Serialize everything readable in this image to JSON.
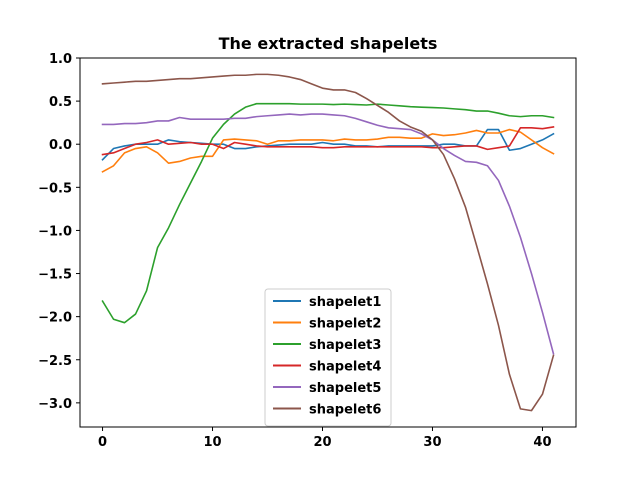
{
  "chart_data": {
    "type": "line",
    "title": "The extracted shapelets",
    "xlabel": "",
    "ylabel": "",
    "xlim": [
      -2.05,
      43.05
    ],
    "ylim": [
      -3.28,
      1.0
    ],
    "xticks": [
      0,
      10,
      20,
      30,
      40
    ],
    "xtick_labels": [
      "0",
      "10",
      "20",
      "30",
      "40"
    ],
    "yticks": [
      1.0,
      0.5,
      0.0,
      -0.5,
      -1.0,
      -1.5,
      -2.0,
      -2.5,
      -3.0
    ],
    "ytick_labels": [
      "1.0",
      "0.5",
      "0.0",
      "−0.5",
      "−1.0",
      "−1.5",
      "−2.0",
      "−2.5",
      "−3.0"
    ],
    "grid": false,
    "legend_position": "lower-center",
    "x": [
      0,
      1,
      2,
      3,
      4,
      5,
      6,
      7,
      8,
      9,
      10,
      11,
      12,
      13,
      14,
      15,
      16,
      17,
      18,
      19,
      20,
      21,
      22,
      23,
      24,
      25,
      26,
      27,
      28,
      29,
      30,
      31,
      32,
      33,
      34,
      35,
      36,
      37,
      38,
      39,
      40,
      41
    ],
    "series": [
      {
        "name": "shapelet1",
        "color": "#1f77b4",
        "values": [
          -0.18,
          -0.05,
          -0.02,
          0.0,
          0.0,
          0.0,
          0.05,
          0.03,
          0.02,
          0.01,
          0.0,
          0.0,
          -0.05,
          -0.05,
          -0.03,
          -0.02,
          -0.01,
          0.0,
          0.0,
          0.0,
          0.02,
          0.0,
          0.0,
          -0.02,
          -0.02,
          -0.03,
          -0.02,
          -0.02,
          -0.02,
          -0.02,
          -0.02,
          0.0,
          0.0,
          -0.02,
          -0.02,
          0.17,
          0.17,
          -0.07,
          -0.05,
          0.0,
          0.05,
          0.12
        ]
      },
      {
        "name": "shapelet2",
        "color": "#ff7f0e",
        "values": [
          -0.32,
          -0.25,
          -0.1,
          -0.05,
          -0.03,
          -0.1,
          -0.22,
          -0.2,
          -0.16,
          -0.14,
          -0.14,
          0.05,
          0.06,
          0.05,
          0.04,
          0.0,
          0.04,
          0.04,
          0.05,
          0.05,
          0.05,
          0.04,
          0.06,
          0.05,
          0.05,
          0.06,
          0.08,
          0.08,
          0.07,
          0.07,
          0.12,
          0.1,
          0.11,
          0.13,
          0.16,
          0.13,
          0.13,
          0.17,
          0.14,
          0.05,
          -0.04,
          -0.11
        ]
      },
      {
        "name": "shapelet3",
        "color": "#2ca02c",
        "values": [
          -1.82,
          -2.03,
          -2.07,
          -1.97,
          -1.7,
          -1.2,
          -0.97,
          -0.7,
          -0.45,
          -0.2,
          0.07,
          0.23,
          0.35,
          0.43,
          0.47,
          0.47,
          0.47,
          0.47,
          0.465,
          0.465,
          0.465,
          0.46,
          0.465,
          0.46,
          0.455,
          0.465,
          0.455,
          0.445,
          0.435,
          0.43,
          0.425,
          0.42,
          0.41,
          0.4,
          0.385,
          0.385,
          0.36,
          0.33,
          0.32,
          0.33,
          0.33,
          0.31
        ]
      },
      {
        "name": "shapelet4",
        "color": "#d62728",
        "values": [
          -0.12,
          -0.1,
          -0.05,
          0.0,
          0.02,
          0.05,
          0.0,
          0.01,
          0.02,
          0.0,
          0.0,
          -0.05,
          0.02,
          0.0,
          -0.02,
          -0.03,
          -0.03,
          -0.03,
          -0.03,
          -0.03,
          -0.04,
          -0.04,
          -0.03,
          -0.03,
          -0.03,
          -0.03,
          -0.03,
          -0.03,
          -0.03,
          -0.03,
          -0.04,
          -0.04,
          -0.03,
          -0.02,
          -0.02,
          -0.06,
          -0.04,
          -0.02,
          0.19,
          0.19,
          0.18,
          0.2
        ]
      },
      {
        "name": "shapelet5",
        "color": "#9467bd",
        "values": [
          0.23,
          0.23,
          0.24,
          0.24,
          0.25,
          0.27,
          0.27,
          0.31,
          0.29,
          0.29,
          0.29,
          0.29,
          0.3,
          0.3,
          0.32,
          0.33,
          0.34,
          0.35,
          0.34,
          0.35,
          0.35,
          0.34,
          0.33,
          0.3,
          0.26,
          0.22,
          0.19,
          0.18,
          0.17,
          0.12,
          0.05,
          -0.05,
          -0.13,
          -0.2,
          -0.21,
          -0.25,
          -0.42,
          -0.72,
          -1.08,
          -1.5,
          -1.95,
          -2.43
        ]
      },
      {
        "name": "shapelet6",
        "color": "#8c564b",
        "values": [
          0.7,
          0.71,
          0.72,
          0.73,
          0.73,
          0.74,
          0.75,
          0.76,
          0.76,
          0.77,
          0.78,
          0.79,
          0.8,
          0.8,
          0.81,
          0.81,
          0.8,
          0.78,
          0.75,
          0.7,
          0.65,
          0.63,
          0.63,
          0.6,
          0.53,
          0.45,
          0.37,
          0.27,
          0.2,
          0.15,
          0.05,
          -0.12,
          -0.4,
          -0.73,
          -1.17,
          -1.62,
          -2.1,
          -2.67,
          -3.07,
          -3.09,
          -2.9,
          -2.45
        ]
      }
    ]
  }
}
